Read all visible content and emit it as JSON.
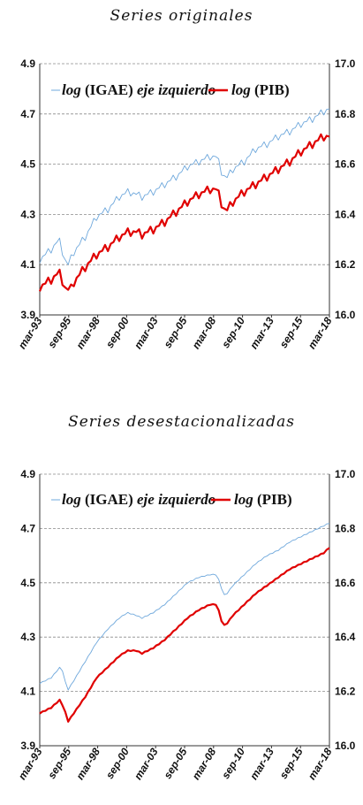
{
  "chart_data": [
    {
      "type": "line",
      "title": "Series originales",
      "x_ticks": [
        "mar-93",
        "sep-95",
        "mar-98",
        "sep-00",
        "mar-03",
        "sep-05",
        "mar-08",
        "sep-10",
        "mar-13",
        "sep-15",
        "mar-18"
      ],
      "y_left_ticks": [
        "3.9",
        "4.1",
        "4.3",
        "4.5",
        "4.7",
        "4.9"
      ],
      "y_right_ticks": [
        "16.0",
        "16.2",
        "16.4",
        "16.6",
        "16.8",
        "17.0"
      ],
      "y_left_range": [
        3.9,
        4.9
      ],
      "y_right_range": [
        16.0,
        17.0
      ],
      "x_range": [
        1993.0,
        2018.5
      ],
      "grid": "horizontal dashed",
      "legend": {
        "igae": {
          "func": "log",
          "name": "(IGAE)",
          "note": "eje izquierdo"
        },
        "pib": {
          "func": "log",
          "name": "(PIB)"
        }
      },
      "series": [
        {
          "key": "igae",
          "axis": "left",
          "color": "#6fa8dc",
          "seasonal": true,
          "points": [
            [
              1993.0,
              4.12
            ],
            [
              1994.0,
              4.16
            ],
            [
              1994.7,
              4.2
            ],
            [
              1995.2,
              4.12
            ],
            [
              1995.5,
              4.1
            ],
            [
              1996.0,
              4.15
            ],
            [
              1997.0,
              4.21
            ],
            [
              1998.0,
              4.29
            ],
            [
              1999.0,
              4.32
            ],
            [
              2000.0,
              4.37
            ],
            [
              2000.8,
              4.39
            ],
            [
              2001.5,
              4.38
            ],
            [
              2002.0,
              4.37
            ],
            [
              2003.0,
              4.39
            ],
            [
              2004.0,
              4.42
            ],
            [
              2005.0,
              4.45
            ],
            [
              2006.0,
              4.49
            ],
            [
              2007.0,
              4.51
            ],
            [
              2008.0,
              4.53
            ],
            [
              2008.6,
              4.53
            ],
            [
              2009.0,
              4.47
            ],
            [
              2009.4,
              4.44
            ],
            [
              2010.0,
              4.48
            ],
            [
              2011.0,
              4.51
            ],
            [
              2012.0,
              4.56
            ],
            [
              2013.0,
              4.58
            ],
            [
              2014.0,
              4.61
            ],
            [
              2015.0,
              4.63
            ],
            [
              2016.0,
              4.66
            ],
            [
              2017.0,
              4.68
            ],
            [
              2018.0,
              4.71
            ],
            [
              2018.5,
              4.72
            ]
          ]
        },
        {
          "key": "pib",
          "axis": "right",
          "color": "#e00000",
          "seasonal": true,
          "points": [
            [
              1993.0,
              16.11
            ],
            [
              1994.0,
              16.14
            ],
            [
              1994.7,
              16.17
            ],
            [
              1995.3,
              16.1
            ],
            [
              1995.7,
              16.1
            ],
            [
              1996.0,
              16.13
            ],
            [
              1997.0,
              16.19
            ],
            [
              1998.0,
              16.24
            ],
            [
              1999.0,
              16.27
            ],
            [
              2000.0,
              16.31
            ],
            [
              2000.8,
              16.33
            ],
            [
              2001.5,
              16.33
            ],
            [
              2002.0,
              16.32
            ],
            [
              2003.0,
              16.34
            ],
            [
              2004.0,
              16.37
            ],
            [
              2005.0,
              16.41
            ],
            [
              2006.0,
              16.45
            ],
            [
              2007.0,
              16.48
            ],
            [
              2008.0,
              16.5
            ],
            [
              2008.6,
              16.5
            ],
            [
              2009.1,
              16.43
            ],
            [
              2009.4,
              16.41
            ],
            [
              2010.0,
              16.45
            ],
            [
              2011.0,
              16.49
            ],
            [
              2012.0,
              16.52
            ],
            [
              2013.0,
              16.55
            ],
            [
              2014.0,
              16.58
            ],
            [
              2015.0,
              16.61
            ],
            [
              2016.0,
              16.65
            ],
            [
              2017.0,
              16.68
            ],
            [
              2018.0,
              16.71
            ],
            [
              2018.5,
              16.71
            ]
          ]
        }
      ]
    },
    {
      "type": "line",
      "title": "Series desestacionalizadas",
      "x_ticks": [
        "mar-93",
        "sep-95",
        "mar-98",
        "sep-00",
        "mar-03",
        "sep-05",
        "mar-08",
        "sep-10",
        "mar-13",
        "sep-15",
        "mar-18"
      ],
      "y_left_ticks": [
        "3.9",
        "4.1",
        "4.3",
        "4.5",
        "4.7",
        "4.9"
      ],
      "y_right_ticks": [
        "16.0",
        "16.2",
        "16.4",
        "16.6",
        "16.8",
        "17.0"
      ],
      "y_left_range": [
        3.9,
        4.9
      ],
      "y_right_range": [
        16.0,
        17.0
      ],
      "x_range": [
        1993.0,
        2018.5
      ],
      "grid": "horizontal dashed",
      "legend": {
        "igae": {
          "func": "log",
          "name": "(IGAE)",
          "note": "eje izquierdo"
        },
        "pib": {
          "func": "log",
          "name": "(PIB)"
        }
      },
      "series": [
        {
          "key": "igae",
          "axis": "left",
          "color": "#6fa8dc",
          "seasonal": false,
          "points": [
            [
              1993.0,
              4.13
            ],
            [
              1994.0,
              4.15
            ],
            [
              1994.8,
              4.19
            ],
            [
              1995.1,
              4.17
            ],
            [
              1995.4,
              4.1
            ],
            [
              1996.0,
              4.14
            ],
            [
              1997.0,
              4.21
            ],
            [
              1998.0,
              4.28
            ],
            [
              1999.0,
              4.33
            ],
            [
              2000.0,
              4.37
            ],
            [
              2000.7,
              4.39
            ],
            [
              2001.5,
              4.38
            ],
            [
              2002.0,
              4.37
            ],
            [
              2003.0,
              4.39
            ],
            [
              2004.0,
              4.42
            ],
            [
              2005.0,
              4.46
            ],
            [
              2006.0,
              4.5
            ],
            [
              2007.0,
              4.52
            ],
            [
              2008.0,
              4.53
            ],
            [
              2008.6,
              4.53
            ],
            [
              2009.0,
              4.48
            ],
            [
              2009.3,
              4.45
            ],
            [
              2010.0,
              4.49
            ],
            [
              2011.0,
              4.53
            ],
            [
              2012.0,
              4.57
            ],
            [
              2013.0,
              4.6
            ],
            [
              2014.0,
              4.62
            ],
            [
              2015.0,
              4.65
            ],
            [
              2016.0,
              4.67
            ],
            [
              2017.0,
              4.69
            ],
            [
              2018.0,
              4.71
            ],
            [
              2018.5,
              4.72
            ]
          ]
        },
        {
          "key": "pib",
          "axis": "right",
          "color": "#e00000",
          "seasonal": false,
          "points": [
            [
              1993.0,
              16.12
            ],
            [
              1994.0,
              16.14
            ],
            [
              1994.8,
              16.17
            ],
            [
              1995.2,
              16.13
            ],
            [
              1995.5,
              16.09
            ],
            [
              1996.0,
              16.12
            ],
            [
              1997.0,
              16.18
            ],
            [
              1998.0,
              16.25
            ],
            [
              1999.0,
              16.29
            ],
            [
              2000.0,
              16.33
            ],
            [
              2000.7,
              16.35
            ],
            [
              2001.5,
              16.35
            ],
            [
              2002.0,
              16.34
            ],
            [
              2003.0,
              16.36
            ],
            [
              2004.0,
              16.39
            ],
            [
              2005.0,
              16.43
            ],
            [
              2006.0,
              16.47
            ],
            [
              2007.0,
              16.5
            ],
            [
              2008.0,
              16.52
            ],
            [
              2008.6,
              16.52
            ],
            [
              2009.0,
              16.46
            ],
            [
              2009.3,
              16.44
            ],
            [
              2010.0,
              16.48
            ],
            [
              2011.0,
              16.52
            ],
            [
              2012.0,
              16.56
            ],
            [
              2013.0,
              16.59
            ],
            [
              2014.0,
              16.62
            ],
            [
              2015.0,
              16.65
            ],
            [
              2016.0,
              16.67
            ],
            [
              2017.0,
              16.69
            ],
            [
              2018.0,
              16.71
            ],
            [
              2018.5,
              16.73
            ]
          ]
        }
      ]
    }
  ]
}
